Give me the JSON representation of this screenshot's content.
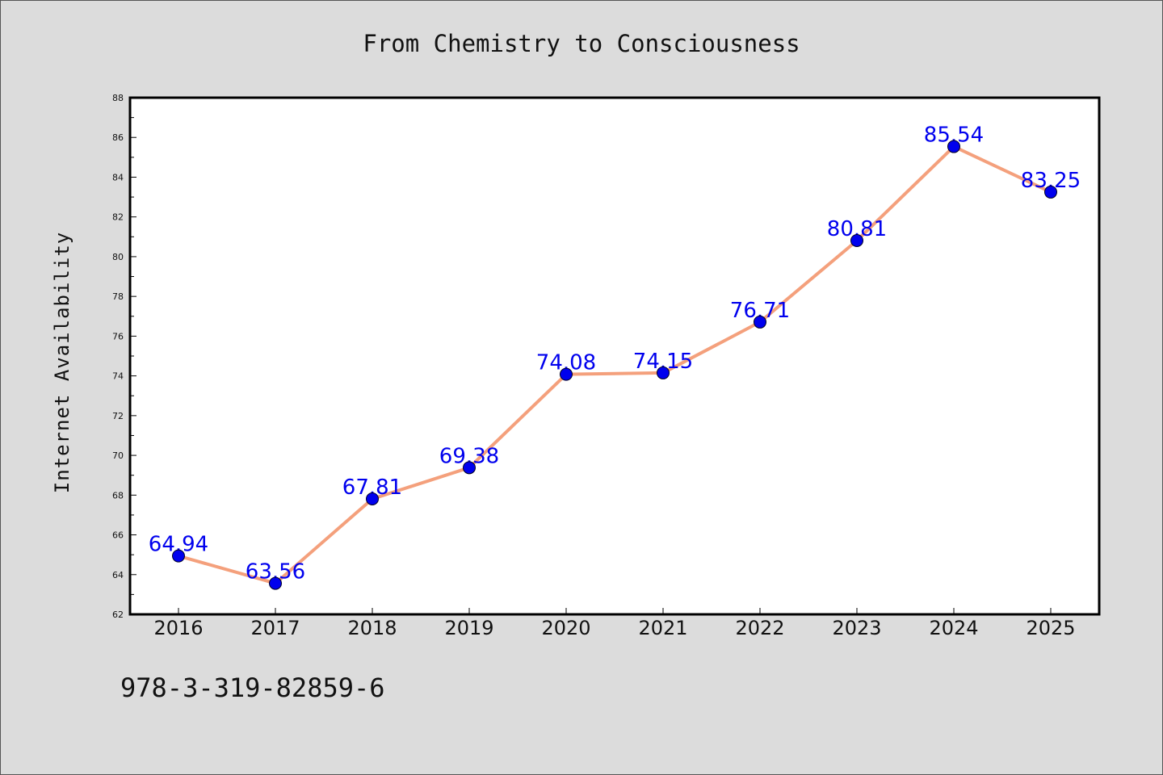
{
  "chart_data": {
    "type": "line",
    "title": "From Chemistry to Consciousness",
    "xlabel": "",
    "ylabel": "Internet Availability",
    "categories": [
      "2016",
      "2017",
      "2018",
      "2019",
      "2020",
      "2021",
      "2022",
      "2023",
      "2024",
      "2025"
    ],
    "values": [
      64.94,
      63.56,
      67.81,
      69.38,
      74.08,
      74.15,
      76.71,
      80.81,
      85.54,
      83.25
    ],
    "value_labels": [
      "64.94",
      "63.56",
      "67.81",
      "69.38",
      "74.08",
      "74.15",
      "76.71",
      "80.81",
      "85.54",
      "83.25"
    ],
    "ylim": [
      62,
      88
    ],
    "yticks": [
      62,
      64,
      66,
      68,
      70,
      72,
      74,
      76,
      78,
      80,
      82,
      84,
      86,
      88
    ],
    "grid": false,
    "legend": "none",
    "colors": {
      "line": "#f4a07c",
      "marker": "#0000ee",
      "label": "#0000ee",
      "background": "#dcdcdc",
      "plot": "#ffffff"
    }
  },
  "footer": {
    "isbn": "978-3-319-82859-6"
  }
}
